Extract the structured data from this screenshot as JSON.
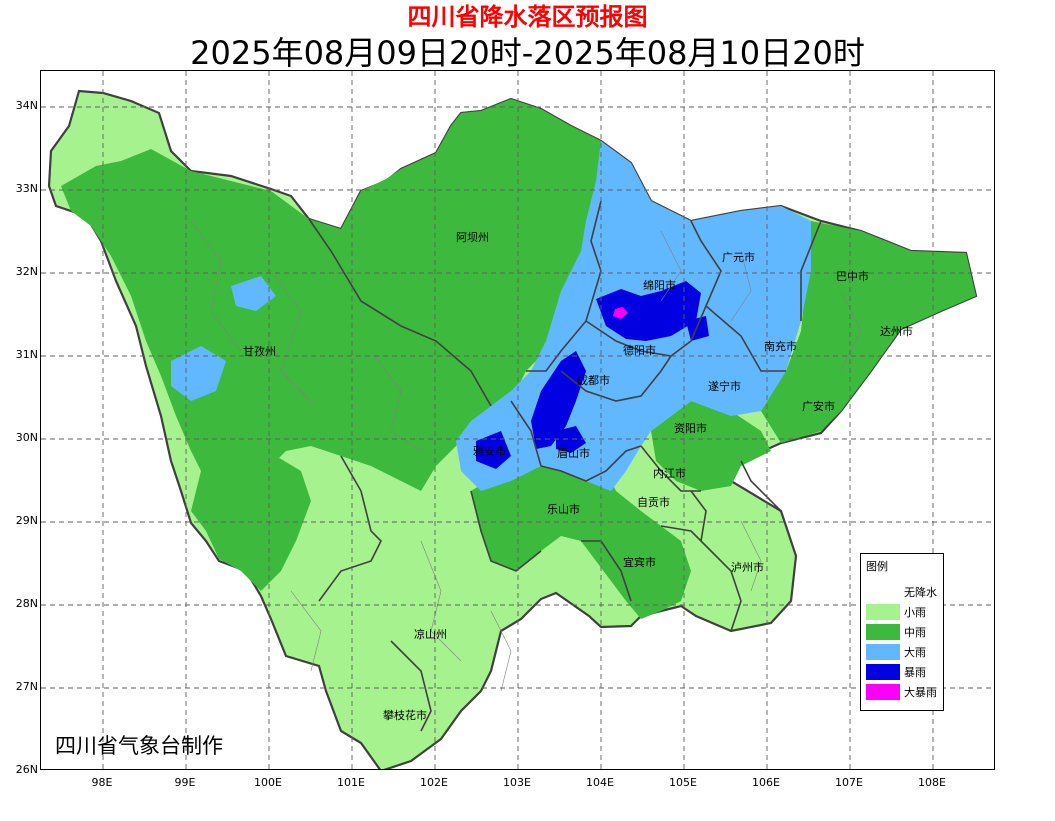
{
  "title": "四川省降水落区预报图",
  "subtitle": "2025年08月09日20时-2025年08月10日20时",
  "credit": "四川省气象台制作",
  "map": {
    "y_ticks": [
      "34N",
      "33N",
      "32N",
      "31N",
      "30N",
      "29N",
      "28N",
      "27N",
      "26N"
    ],
    "x_ticks": [
      "98E",
      "99E",
      "100E",
      "101E",
      "102E",
      "103E",
      "104E",
      "105E",
      "106E",
      "107E",
      "108E"
    ],
    "regions": [
      "阿坝州",
      "甘孜州",
      "广元市",
      "巴中市",
      "绵阳市",
      "达州市",
      "德阳市",
      "南充市",
      "成都市",
      "遂宁市",
      "广安市",
      "雅安市",
      "眉山市",
      "资阳市",
      "内江市",
      "乐山市",
      "自贡市",
      "宜宾市",
      "泸州市",
      "凉山州",
      "攀枝花市"
    ],
    "colors": {
      "boundary": "#404040",
      "county_line": "#808080",
      "grid": "#606060"
    }
  },
  "legend": {
    "title": "图例",
    "items": [
      {
        "label": "无降水",
        "color": "#ffffff"
      },
      {
        "label": "小雨",
        "color": "#a6f28f"
      },
      {
        "label": "中雨",
        "color": "#3dba3d"
      },
      {
        "label": "大雨",
        "color": "#61b8ff"
      },
      {
        "label": "暴雨",
        "color": "#0000e1"
      },
      {
        "label": "大暴雨",
        "color": "#fa00fa"
      }
    ]
  }
}
